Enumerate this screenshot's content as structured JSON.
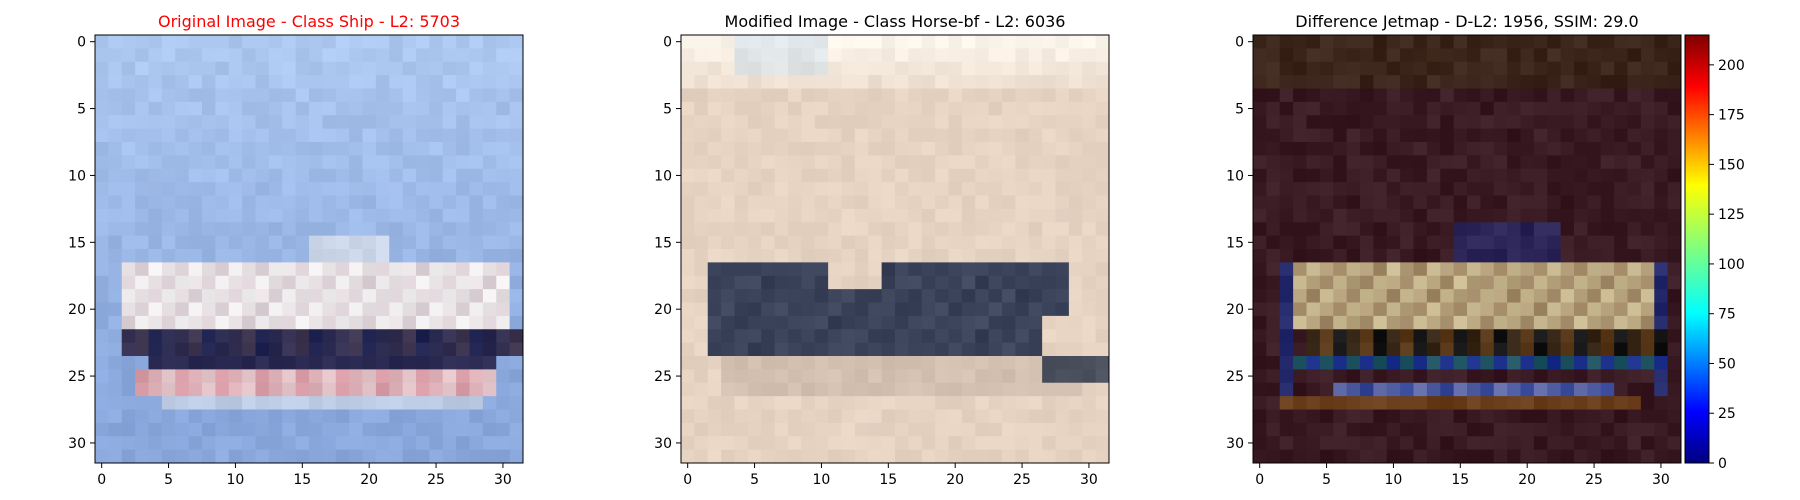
{
  "chart_data": [
    {
      "type": "heatmap",
      "title": "Original Image - Class Ship - L2: 5703",
      "title_color": "#ff0000",
      "grid_size": 32,
      "xticks": [
        0,
        5,
        10,
        15,
        20,
        25,
        30
      ],
      "yticks": [
        0,
        5,
        10,
        15,
        20,
        25,
        30
      ],
      "xlim": [
        -0.5,
        31.5
      ],
      "ylim": [
        31.5,
        -0.5
      ],
      "content": "CIFAR-style ship image in light blue sea and sky",
      "palette": {
        "sky": "#adc8f0",
        "sea": "#8aa8dc",
        "hull_white": "#f0eeee",
        "hull_dark": "#1f2350",
        "stripe": "#d69ba4"
      }
    },
    {
      "type": "heatmap",
      "title": "Modified Image - Class Horse-bf - L2: 6036",
      "title_color": "#000000",
      "grid_size": 32,
      "xticks": [
        0,
        5,
        10,
        15,
        20,
        25,
        30
      ],
      "yticks": [
        0,
        5,
        10,
        15,
        20,
        25,
        30
      ],
      "xlim": [
        -0.5,
        31.5
      ],
      "ylim": [
        31.5,
        -0.5
      ],
      "content": "Beige background with dark blue-grey horizontal object",
      "palette": {
        "bg_top": "#fbf4ea",
        "bg": "#e6d3c2",
        "object": "#353d55",
        "shadow": "#bfa89a"
      }
    },
    {
      "type": "heatmap",
      "title": "Difference Jetmap - D-L2: 1956, SSIM: 29.0",
      "title_color": "#000000",
      "grid_size": 32,
      "xticks": [
        0,
        5,
        10,
        15,
        20,
        25,
        30
      ],
      "yticks": [
        0,
        5,
        10,
        15,
        20,
        25,
        30
      ],
      "xlim": [
        -0.5,
        31.5
      ],
      "ylim": [
        31.5,
        -0.5
      ],
      "content": "Dark purple/brown difference map with bright outline of ship",
      "palette": {
        "bg": "#3a1a22",
        "highlight": "#c8b890",
        "blue": "#1a2f8a",
        "orange": "#7a4a1a"
      },
      "colorbar": {
        "colormap": "jet",
        "range": [
          0,
          215
        ],
        "ticks": [
          0,
          25,
          50,
          75,
          100,
          125,
          150,
          175,
          200
        ]
      }
    }
  ]
}
